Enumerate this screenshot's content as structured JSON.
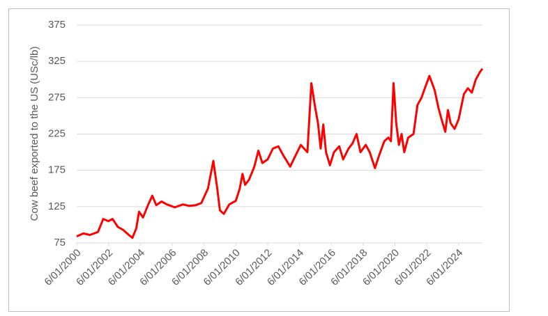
{
  "chart_data": {
    "type": "line",
    "y_label": "Cow beef exported to the US (USc/lb)",
    "color": "#ff0000",
    "grid": true,
    "x": [
      "2000-06-01",
      "2000-11-01",
      "2001-04-01",
      "2001-10-01",
      "2002-02-01",
      "2002-06-01",
      "2002-09-01",
      "2003-01-01",
      "2003-05-01",
      "2003-10-01",
      "2003-12-01",
      "2004-03-01",
      "2004-05-01",
      "2004-08-01",
      "2004-12-01",
      "2005-03-01",
      "2005-06-01",
      "2005-10-01",
      "2006-02-01",
      "2006-08-01",
      "2007-02-01",
      "2007-07-01",
      "2007-12-01",
      "2008-04-01",
      "2008-09-01",
      "2009-01-01",
      "2009-04-01",
      "2009-06-01",
      "2009-09-01",
      "2010-01-01",
      "2010-06-01",
      "2010-09-01",
      "2010-11-01",
      "2011-01-01",
      "2011-04-01",
      "2011-08-01",
      "2011-11-01",
      "2012-02-01",
      "2012-06-01",
      "2012-10-01",
      "2013-02-01",
      "2013-06-01",
      "2013-11-01",
      "2014-03-01",
      "2014-07-01",
      "2014-12-01",
      "2015-03-01",
      "2015-06-01",
      "2015-08-01",
      "2015-10-01",
      "2015-12-01",
      "2016-02-01",
      "2016-05-01",
      "2016-08-01",
      "2016-12-01",
      "2017-03-01",
      "2017-07-01",
      "2017-10-01",
      "2018-01-01",
      "2018-04-01",
      "2018-08-01",
      "2018-11-01",
      "2019-03-01",
      "2019-06-01",
      "2019-10-01",
      "2020-01-01",
      "2020-03-01",
      "2020-05-01",
      "2020-07-01",
      "2020-09-01",
      "2020-11-01",
      "2021-01-01",
      "2021-04-01",
      "2021-08-01",
      "2021-11-01",
      "2022-02-01",
      "2022-05-01",
      "2022-08-01",
      "2022-12-01",
      "2023-03-01",
      "2023-06-01",
      "2023-08-01",
      "2023-10-01",
      "2023-12-01",
      "2024-03-01",
      "2024-06-01",
      "2024-10-01",
      "2025-01-01",
      "2025-04-01",
      "2025-07-01",
      "2025-10-01",
      "2025-12-01"
    ],
    "values": [
      84,
      88,
      86,
      90,
      108,
      105,
      108,
      97,
      93,
      85,
      82,
      95,
      118,
      110,
      128,
      140,
      127,
      132,
      128,
      124,
      128,
      126,
      127,
      130,
      150,
      188,
      150,
      120,
      115,
      128,
      133,
      150,
      170,
      155,
      162,
      180,
      202,
      185,
      190,
      205,
      208,
      195,
      180,
      195,
      210,
      200,
      295,
      260,
      240,
      205,
      238,
      200,
      182,
      200,
      208,
      190,
      205,
      212,
      225,
      200,
      210,
      200,
      178,
      195,
      215,
      220,
      215,
      295,
      240,
      210,
      225,
      200,
      220,
      225,
      265,
      275,
      290,
      305,
      285,
      260,
      240,
      228,
      258,
      240,
      232,
      245,
      280,
      288,
      282,
      300,
      310,
      315
    ],
    "xlim": [
      "2000-06-01",
      "2025-12-01"
    ],
    "xticks": [
      {
        "value": "2000-06-01",
        "label": "6/01/2000"
      },
      {
        "value": "2002-06-01",
        "label": "6/01/2002"
      },
      {
        "value": "2004-06-01",
        "label": "6/01/2004"
      },
      {
        "value": "2006-06-01",
        "label": "6/01/2006"
      },
      {
        "value": "2008-06-01",
        "label": "6/01/2008"
      },
      {
        "value": "2010-06-01",
        "label": "6/01/2010"
      },
      {
        "value": "2012-06-01",
        "label": "6/01/2012"
      },
      {
        "value": "2014-06-01",
        "label": "6/01/2014"
      },
      {
        "value": "2016-06-01",
        "label": "6/01/2016"
      },
      {
        "value": "2018-06-01",
        "label": "6/01/2018"
      },
      {
        "value": "2020-06-01",
        "label": "6/01/2020"
      },
      {
        "value": "2022-06-01",
        "label": "6/01/2022"
      },
      {
        "value": "2024-06-01",
        "label": "6/01/2024"
      }
    ],
    "ylim": [
      75,
      375
    ],
    "yticks": [
      75,
      125,
      175,
      225,
      275,
      325,
      375
    ]
  }
}
